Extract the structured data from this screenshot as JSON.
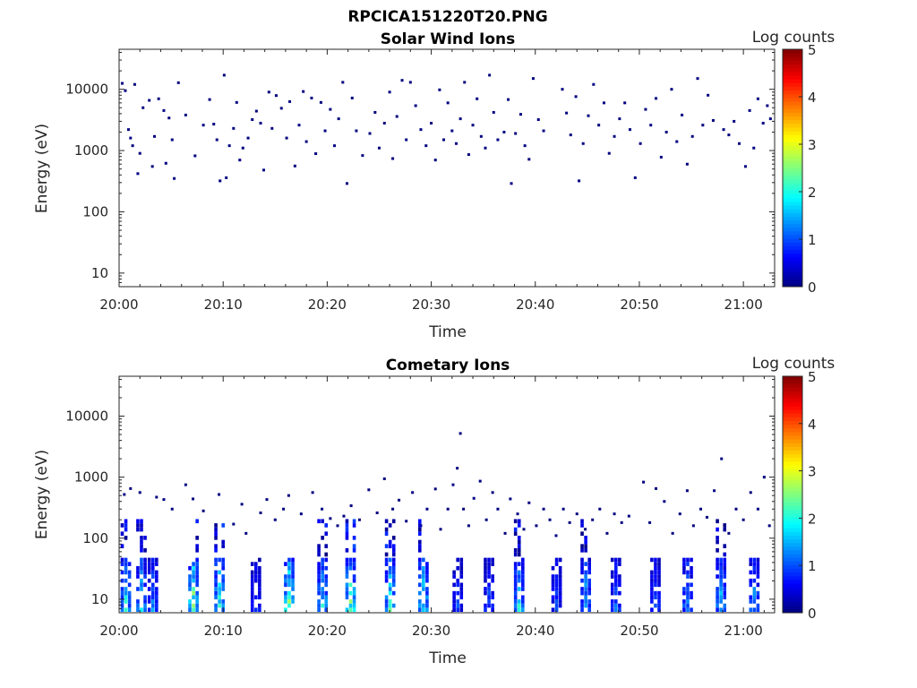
{
  "figure_title": "RPCICA151220T20.PNG",
  "chart_data": [
    {
      "type": "heatmap",
      "title": "Solar Wind Ions",
      "xlabel": "Time",
      "ylabel": "Energy (eV)",
      "x_ticks": [
        "20:00",
        "20:10",
        "20:20",
        "20:30",
        "20:40",
        "20:50",
        "21:00"
      ],
      "y_ticks": [
        "10",
        "100",
        "1000",
        "10000"
      ],
      "y_scale": "log",
      "x_range_minutes": [
        0,
        63
      ],
      "y_range": [
        6,
        45000
      ],
      "colorbar": {
        "label": "Log counts",
        "ticks": [
          "0",
          "1",
          "2",
          "3",
          "4",
          "5"
        ],
        "colormap": "jet",
        "range": [
          0,
          5
        ]
      },
      "description_pattern": "sparse single counts (log counts ~0) scattered between ~300 eV and ~17000 eV across the whole interval",
      "points": [
        [
          0.3,
          12500,
          0
        ],
        [
          0.6,
          9500,
          0
        ],
        [
          0.9,
          2200,
          0
        ],
        [
          1.1,
          1600,
          0
        ],
        [
          1.3,
          1200,
          0
        ],
        [
          1.5,
          12000,
          0
        ],
        [
          1.8,
          420,
          0
        ],
        [
          2.0,
          900,
          0
        ],
        [
          2.3,
          5000,
          0
        ],
        [
          2.9,
          6600,
          0
        ],
        [
          3.2,
          550,
          0
        ],
        [
          3.4,
          1700,
          0
        ],
        [
          3.8,
          7000,
          0
        ],
        [
          4.3,
          4500,
          0
        ],
        [
          4.5,
          620,
          0
        ],
        [
          4.8,
          3400,
          0
        ],
        [
          5.1,
          1500,
          0
        ],
        [
          5.3,
          350,
          0
        ],
        [
          5.7,
          12800,
          0
        ],
        [
          6.4,
          3800,
          0
        ],
        [
          7.3,
          820,
          0
        ],
        [
          8.1,
          2600,
          0
        ],
        [
          8.7,
          6800,
          0
        ],
        [
          9.1,
          2700,
          0
        ],
        [
          9.4,
          1500,
          0
        ],
        [
          9.7,
          320,
          0
        ],
        [
          10.1,
          17000,
          0
        ],
        [
          10.3,
          360,
          0
        ],
        [
          10.6,
          1200,
          0
        ],
        [
          11.0,
          2300,
          0
        ],
        [
          11.3,
          6100,
          0
        ],
        [
          11.6,
          700,
          0
        ],
        [
          11.9,
          1100,
          0
        ],
        [
          12.4,
          1600,
          0
        ],
        [
          12.8,
          3200,
          0
        ],
        [
          13.2,
          4400,
          0
        ],
        [
          13.6,
          2800,
          0
        ],
        [
          13.9,
          480,
          0
        ],
        [
          14.4,
          9000,
          0
        ],
        [
          14.7,
          2300,
          0
        ],
        [
          15.1,
          7900,
          0
        ],
        [
          15.6,
          4900,
          0
        ],
        [
          16.1,
          1600,
          0
        ],
        [
          16.4,
          6300,
          0
        ],
        [
          16.9,
          560,
          0
        ],
        [
          17.3,
          2600,
          0
        ],
        [
          17.7,
          9200,
          0
        ],
        [
          18.0,
          1400,
          0
        ],
        [
          18.5,
          7200,
          0
        ],
        [
          18.9,
          890,
          0
        ],
        [
          19.4,
          6100,
          0
        ],
        [
          19.8,
          2100,
          0
        ],
        [
          20.3,
          4700,
          0
        ],
        [
          20.7,
          1200,
          0
        ],
        [
          21.1,
          3300,
          0
        ],
        [
          21.5,
          13000,
          0
        ],
        [
          21.9,
          290,
          0
        ],
        [
          22.4,
          7200,
          0
        ],
        [
          22.8,
          2100,
          0
        ],
        [
          23.4,
          830,
          0
        ],
        [
          24.1,
          1900,
          0
        ],
        [
          24.6,
          4200,
          0
        ],
        [
          25.0,
          1100,
          0
        ],
        [
          25.5,
          2800,
          0
        ],
        [
          26.0,
          9000,
          0
        ],
        [
          26.3,
          740,
          0
        ],
        [
          26.7,
          3600,
          0
        ],
        [
          27.2,
          14000,
          0
        ],
        [
          27.6,
          1500,
          0
        ],
        [
          28.0,
          13000,
          0
        ],
        [
          28.5,
          5400,
          0
        ],
        [
          29.0,
          2200,
          0
        ],
        [
          29.5,
          1200,
          0
        ],
        [
          30.0,
          2800,
          0
        ],
        [
          30.4,
          700,
          0
        ],
        [
          30.8,
          9800,
          0
        ],
        [
          31.2,
          1500,
          0
        ],
        [
          31.6,
          6000,
          0
        ],
        [
          32.0,
          2100,
          0
        ],
        [
          32.4,
          1300,
          0
        ],
        [
          32.8,
          3300,
          0
        ],
        [
          33.2,
          13000,
          0
        ],
        [
          33.6,
          860,
          0
        ],
        [
          34.0,
          2600,
          0
        ],
        [
          34.4,
          7000,
          0
        ],
        [
          34.8,
          1700,
          0
        ],
        [
          35.2,
          1100,
          0
        ],
        [
          35.6,
          17000,
          0
        ],
        [
          36.0,
          4200,
          0
        ],
        [
          36.4,
          1500,
          0
        ],
        [
          37.0,
          2000,
          0
        ],
        [
          37.4,
          6800,
          0
        ],
        [
          37.7,
          290,
          0
        ],
        [
          38.1,
          1900,
          0
        ],
        [
          38.6,
          3900,
          0
        ],
        [
          39.0,
          1200,
          0
        ],
        [
          39.4,
          720,
          0
        ],
        [
          39.8,
          15000,
          0
        ],
        [
          40.3,
          3200,
          0
        ],
        [
          40.8,
          2100,
          0
        ],
        [
          42.6,
          10000,
          0
        ],
        [
          43.0,
          4100,
          0
        ],
        [
          43.4,
          1800,
          0
        ],
        [
          43.9,
          7600,
          0
        ],
        [
          44.2,
          320,
          0
        ],
        [
          44.6,
          1300,
          0
        ],
        [
          45.1,
          3700,
          0
        ],
        [
          45.6,
          12000,
          0
        ],
        [
          46.1,
          2600,
          0
        ],
        [
          46.6,
          6000,
          0
        ],
        [
          47.1,
          900,
          0
        ],
        [
          47.6,
          1700,
          0
        ],
        [
          48.1,
          3300,
          0
        ],
        [
          48.6,
          6000,
          0
        ],
        [
          49.1,
          2200,
          0
        ],
        [
          49.6,
          360,
          0
        ],
        [
          50.1,
          1300,
          0
        ],
        [
          50.6,
          4700,
          0
        ],
        [
          51.1,
          2600,
          0
        ],
        [
          51.6,
          7100,
          0
        ],
        [
          52.1,
          780,
          0
        ],
        [
          52.6,
          2000,
          0
        ],
        [
          53.1,
          10000,
          0
        ],
        [
          53.6,
          1400,
          0
        ],
        [
          54.1,
          3800,
          0
        ],
        [
          54.6,
          600,
          0
        ],
        [
          55.1,
          1700,
          0
        ],
        [
          55.6,
          15000,
          0
        ],
        [
          56.1,
          2600,
          0
        ],
        [
          56.6,
          8000,
          0
        ],
        [
          57.1,
          3100,
          0
        ],
        [
          58.1,
          2200,
          0
        ],
        [
          58.6,
          1800,
          0
        ],
        [
          59.1,
          3000,
          0
        ],
        [
          59.6,
          1300,
          0
        ],
        [
          60.2,
          550,
          0
        ],
        [
          60.6,
          4500,
          0
        ],
        [
          61.0,
          1100,
          0
        ],
        [
          61.4,
          7000,
          0
        ],
        [
          61.9,
          2800,
          0
        ],
        [
          62.3,
          5400,
          0
        ],
        [
          62.6,
          3300,
          0
        ]
      ]
    },
    {
      "type": "heatmap",
      "title": "Cometary Ions",
      "xlabel": "Time",
      "ylabel": "Energy (eV)",
      "x_ticks": [
        "20:00",
        "20:10",
        "20:20",
        "20:30",
        "20:40",
        "20:50",
        "21:00"
      ],
      "y_ticks": [
        "10",
        "100",
        "1000",
        "10000"
      ],
      "y_scale": "log",
      "x_range_minutes": [
        0,
        63
      ],
      "y_range": [
        6,
        45000
      ],
      "colorbar": {
        "label": "Log counts",
        "ticks": [
          "0",
          "1",
          "2",
          "3",
          "4",
          "5"
        ],
        "colormap": "jet",
        "range": [
          0,
          5
        ]
      },
      "description_pattern": "intense low-energy bursts (6-40 eV, log counts up to ~3) roughly every 2-3 minutes, with sparse counts up to ~1000 eV and a few up to ~5000 eV",
      "bursts_minutes": [
        0.3,
        1.8,
        2.9,
        6.8,
        9.3,
        12.8,
        16.0,
        19.2,
        21.9,
        25.7,
        28.9,
        32.2,
        35.2,
        38.1,
        41.7,
        44.5,
        47.4,
        51.2,
        54.3,
        57.5,
        60.7
      ],
      "burst_peak_log_counts": [
        2.4,
        2.2,
        1.6,
        3.2,
        2.9,
        1.2,
        3.1,
        2.4,
        3.0,
        2.6,
        2.6,
        1.2,
        1.3,
        2.4,
        1.2,
        2.0,
        1.4,
        1.4,
        1.8,
        2.0,
        1.8
      ],
      "sparse_points": [
        [
          0.5,
          520,
          0
        ],
        [
          1.1,
          650,
          0
        ],
        [
          2.0,
          560,
          0
        ],
        [
          3.6,
          470,
          0
        ],
        [
          4.3,
          430,
          0
        ],
        [
          5.1,
          300,
          0
        ],
        [
          6.4,
          750,
          0
        ],
        [
          7.1,
          440,
          0
        ],
        [
          8.1,
          280,
          0
        ],
        [
          9.6,
          520,
          0
        ],
        [
          11.0,
          170,
          0
        ],
        [
          11.8,
          360,
          0
        ],
        [
          12.2,
          120,
          0
        ],
        [
          13.6,
          260,
          0
        ],
        [
          14.2,
          430,
          0
        ],
        [
          15.0,
          200,
          0
        ],
        [
          15.8,
          300,
          0
        ],
        [
          16.3,
          500,
          0
        ],
        [
          17.5,
          250,
          0
        ],
        [
          18.6,
          560,
          0
        ],
        [
          19.5,
          300,
          0
        ],
        [
          20.3,
          210,
          0
        ],
        [
          21.0,
          160,
          0
        ],
        [
          21.6,
          230,
          0
        ],
        [
          22.3,
          340,
          0
        ],
        [
          23.1,
          200,
          0
        ],
        [
          24.0,
          620,
          0
        ],
        [
          24.8,
          260,
          0
        ],
        [
          25.5,
          940,
          0
        ],
        [
          26.3,
          300,
          0
        ],
        [
          26.9,
          420,
          0
        ],
        [
          27.6,
          190,
          0
        ],
        [
          28.2,
          560,
          0
        ],
        [
          29.0,
          160,
          0
        ],
        [
          29.6,
          300,
          0
        ],
        [
          30.4,
          640,
          0
        ],
        [
          30.9,
          140,
          0
        ],
        [
          31.6,
          300,
          0
        ],
        [
          32.1,
          750,
          0
        ],
        [
          32.5,
          1400,
          0
        ],
        [
          32.8,
          5200,
          0
        ],
        [
          33.1,
          300,
          0
        ],
        [
          33.6,
          160,
          0
        ],
        [
          34.1,
          450,
          0
        ],
        [
          34.7,
          860,
          0
        ],
        [
          35.3,
          200,
          0
        ],
        [
          35.9,
          560,
          0
        ],
        [
          36.4,
          300,
          0
        ],
        [
          37.1,
          120,
          0
        ],
        [
          37.6,
          440,
          0
        ],
        [
          38.3,
          250,
          0
        ],
        [
          38.9,
          140,
          0
        ],
        [
          39.4,
          380,
          0
        ],
        [
          40.1,
          160,
          0
        ],
        [
          40.8,
          300,
          0
        ],
        [
          41.4,
          200,
          0
        ],
        [
          42.0,
          110,
          0
        ],
        [
          42.7,
          300,
          0
        ],
        [
          43.3,
          180,
          0
        ],
        [
          44.0,
          250,
          0
        ],
        [
          44.8,
          140,
          0
        ],
        [
          45.5,
          200,
          0
        ],
        [
          46.2,
          300,
          0
        ],
        [
          46.9,
          120,
          0
        ],
        [
          47.6,
          250,
          0
        ],
        [
          48.3,
          180,
          0
        ],
        [
          49.0,
          230,
          0
        ],
        [
          50.4,
          830,
          0
        ],
        [
          51.0,
          180,
          0
        ],
        [
          51.6,
          650,
          0
        ],
        [
          52.4,
          400,
          0
        ],
        [
          53.2,
          120,
          0
        ],
        [
          53.9,
          250,
          0
        ],
        [
          54.6,
          600,
          0
        ],
        [
          55.2,
          160,
          0
        ],
        [
          55.9,
          300,
          0
        ],
        [
          56.5,
          220,
          0
        ],
        [
          57.2,
          600,
          0
        ],
        [
          57.9,
          2000,
          0
        ],
        [
          58.6,
          120,
          0
        ],
        [
          59.3,
          300,
          0
        ],
        [
          60.0,
          200,
          0
        ],
        [
          60.7,
          560,
          0
        ],
        [
          61.4,
          300,
          0
        ],
        [
          62.0,
          1000,
          0
        ],
        [
          62.5,
          160,
          0
        ]
      ]
    }
  ]
}
